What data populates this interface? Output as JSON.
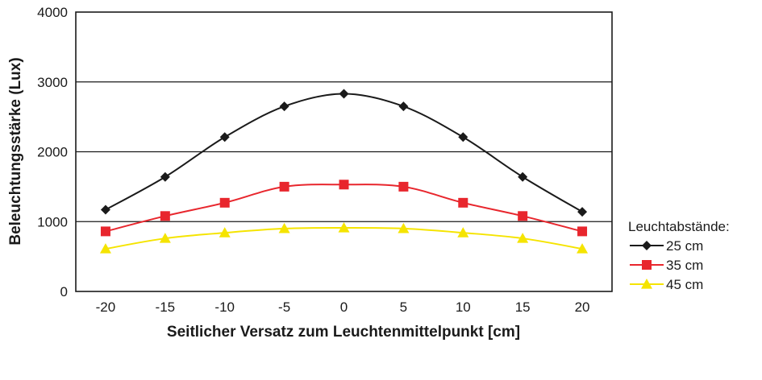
{
  "chart_data": {
    "type": "line",
    "title": "",
    "xlabel": "Seitlicher Versatz zum Leuchtenmittelpunkt [cm]",
    "ylabel": "Beleuchtungsstärke (Lux)",
    "x": [
      -20,
      -15,
      -10,
      -5,
      0,
      5,
      10,
      15,
      20
    ],
    "x_ticks": [
      "-20",
      "-15",
      "-10",
      "-5",
      "0",
      "5",
      "10",
      "15",
      "20"
    ],
    "y_ticks": [
      "0",
      "1000",
      "2000",
      "3000",
      "4000"
    ],
    "xlim": [
      -22.5,
      22.5
    ],
    "ylim": [
      0,
      4000
    ],
    "grid": "horizontal",
    "legend_title": "Leuchtabstände:",
    "legend_position": "right",
    "series": [
      {
        "name": "25 cm",
        "marker": "diamond",
        "color": "#1a1a1a",
        "values": [
          1170,
          1640,
          2210,
          2650,
          2830,
          2650,
          2210,
          1640,
          1140
        ]
      },
      {
        "name": "35 cm",
        "marker": "square",
        "color": "#e8262d",
        "values": [
          860,
          1080,
          1270,
          1500,
          1530,
          1500,
          1270,
          1080,
          860
        ]
      },
      {
        "name": "45 cm",
        "marker": "triangle",
        "color": "#f5e400",
        "values": [
          610,
          760,
          840,
          900,
          910,
          900,
          840,
          760,
          610
        ]
      }
    ]
  }
}
